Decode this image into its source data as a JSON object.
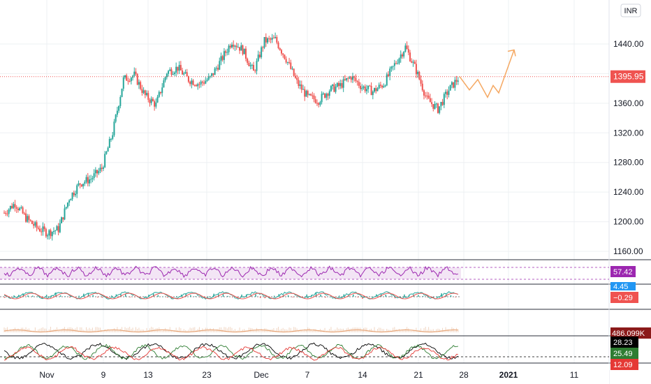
{
  "chart_data": {
    "type": "candlestick",
    "currency_label": "INR",
    "y_ticks": [
      1160,
      1200,
      1240,
      1280,
      1320,
      1360,
      1400,
      1440
    ],
    "y_tick_labels": [
      "1160.00",
      "1200.00",
      "1240.00",
      "1280.00",
      "1320.00",
      "1360.00",
      "1400.00",
      "1440.00"
    ],
    "x_ticks": [
      "Nov",
      "9",
      "13",
      "23",
      "Dec",
      "7",
      "14",
      "21",
      "28",
      "2021",
      "11"
    ],
    "x_tick_bold": [
      "2021"
    ],
    "ylim": [
      1140,
      1480
    ],
    "last_price": 1395.95,
    "last_price_label": "1395.95",
    "price_series_daily_close": [
      {
        "x": "Oct 26",
        "y": 1212
      },
      {
        "x": "Oct 27",
        "y": 1225
      },
      {
        "x": "Oct 28",
        "y": 1205
      },
      {
        "x": "Oct 29",
        "y": 1192
      },
      {
        "x": "Oct 30",
        "y": 1185
      },
      {
        "x": "Nov 2",
        "y": 1190
      },
      {
        "x": "Nov 3",
        "y": 1232
      },
      {
        "x": "Nov 4",
        "y": 1252
      },
      {
        "x": "Nov 5",
        "y": 1258
      },
      {
        "x": "Nov 6",
        "y": 1272
      },
      {
        "x": "Nov 9",
        "y": 1320
      },
      {
        "x": "Nov 10",
        "y": 1392
      },
      {
        "x": "Nov 11",
        "y": 1398
      },
      {
        "x": "Nov 12",
        "y": 1370
      },
      {
        "x": "Nov 13",
        "y": 1358
      },
      {
        "x": "Nov 17",
        "y": 1402
      },
      {
        "x": "Nov 18",
        "y": 1408
      },
      {
        "x": "Nov 19",
        "y": 1392
      },
      {
        "x": "Nov 20",
        "y": 1386
      },
      {
        "x": "Nov 23",
        "y": 1394
      },
      {
        "x": "Nov 24",
        "y": 1418
      },
      {
        "x": "Nov 25",
        "y": 1444
      },
      {
        "x": "Nov 26",
        "y": 1432
      },
      {
        "x": "Nov 27",
        "y": 1402
      },
      {
        "x": "Dec 1",
        "y": 1444
      },
      {
        "x": "Dec 2",
        "y": 1446
      },
      {
        "x": "Dec 3",
        "y": 1420
      },
      {
        "x": "Dec 4",
        "y": 1388
      },
      {
        "x": "Dec 7",
        "y": 1368
      },
      {
        "x": "Dec 8",
        "y": 1364
      },
      {
        "x": "Dec 9",
        "y": 1378
      },
      {
        "x": "Dec 10",
        "y": 1384
      },
      {
        "x": "Dec 11",
        "y": 1396
      },
      {
        "x": "Dec 14",
        "y": 1382
      },
      {
        "x": "Dec 15",
        "y": 1376
      },
      {
        "x": "Dec 16",
        "y": 1386
      },
      {
        "x": "Dec 17",
        "y": 1412
      },
      {
        "x": "Dec 18",
        "y": 1436
      },
      {
        "x": "Dec 21",
        "y": 1404
      },
      {
        "x": "Dec 22",
        "y": 1365
      },
      {
        "x": "Dec 23",
        "y": 1352
      },
      {
        "x": "Dec 24",
        "y": 1378
      },
      {
        "x": "Dec 28",
        "y": 1396
      }
    ],
    "projection_path": [
      {
        "x": "Dec 28",
        "y": 1396
      },
      {
        "x": "Dec 29",
        "y": 1378
      },
      {
        "x": "Dec 30",
        "y": 1392
      },
      {
        "x": "Dec 31",
        "y": 1368
      },
      {
        "x": "Jan 1",
        "y": 1384
      },
      {
        "x": "Jan 2",
        "y": 1374
      },
      {
        "x": "Jan 3",
        "y": 1432
      }
    ],
    "indicators": [
      {
        "panel": "rsi",
        "value_label": "57.42",
        "color": "#9c27b0",
        "band_color": "#f3e5f5"
      },
      {
        "panel": "macd",
        "value_labels": [
          "4.45",
          "−0.29"
        ],
        "colors": [
          "#2196f3",
          "#ef5350"
        ]
      },
      {
        "panel": "volume",
        "value_label": "486.099K",
        "color": "#e8a87c"
      },
      {
        "panel": "dmi",
        "value_labels": [
          "28.23",
          "25.49",
          "12.09"
        ],
        "colors": [
          "#000000",
          "#2e7d32",
          "#e53935"
        ]
      }
    ],
    "colors": {
      "up": "#26a69a",
      "down": "#ef5350",
      "projection": "#f5a862",
      "last_price_line": "#ef5350",
      "rsi": "#9c27b0",
      "volume_badge": "#8b1a1a"
    }
  }
}
